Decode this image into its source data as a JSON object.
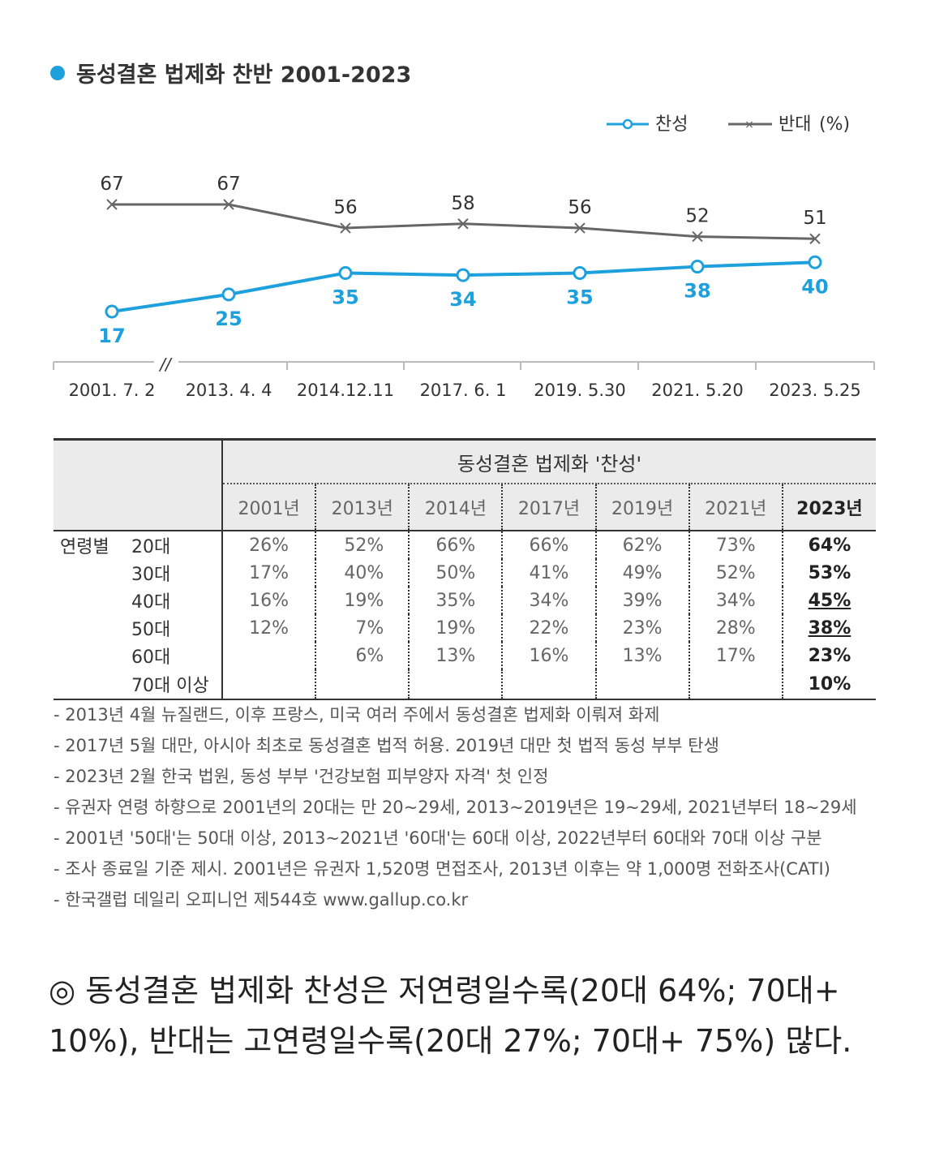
{
  "title": "동성결혼 법제화 찬반 2001-2023",
  "legend": {
    "support": "찬성",
    "oppose": "반대",
    "unit": "(%)"
  },
  "colors": {
    "support": "#1ea0dc",
    "oppose": "#666666"
  },
  "chart_data": {
    "type": "line",
    "categories": [
      "2001. 7. 2",
      "2013. 4. 4",
      "2014.12.11",
      "2017. 6. 1",
      "2019. 5.30",
      "2021. 5.20",
      "2023. 5.25"
    ],
    "axis_break_marker": "//",
    "series": [
      {
        "name": "찬성",
        "values": [
          17,
          25,
          35,
          34,
          35,
          38,
          40
        ]
      },
      {
        "name": "반대",
        "values": [
          67,
          67,
          56,
          58,
          56,
          52,
          51
        ]
      }
    ],
    "legend_position": "top-right"
  },
  "table": {
    "title": "동성결혼 법제화 '찬성'",
    "years": [
      "2001년",
      "2013년",
      "2014년",
      "2017년",
      "2019년",
      "2021년",
      "2023년"
    ],
    "group_label": "연령별",
    "rows": [
      {
        "age": "20대",
        "values": [
          "26%",
          "52%",
          "66%",
          "66%",
          "62%",
          "73%",
          "64%"
        ]
      },
      {
        "age": "30대",
        "values": [
          "17%",
          "40%",
          "50%",
          "41%",
          "49%",
          "52%",
          "53%"
        ]
      },
      {
        "age": "40대",
        "values": [
          "16%",
          "19%",
          "35%",
          "34%",
          "39%",
          "34%",
          "45%"
        ]
      },
      {
        "age": "50대",
        "values": [
          "12%",
          "7%",
          "19%",
          "22%",
          "23%",
          "28%",
          "38%"
        ]
      },
      {
        "age": "60대",
        "values": [
          "",
          "6%",
          "13%",
          "16%",
          "13%",
          "17%",
          "23%"
        ]
      },
      {
        "age": "70대 이상",
        "values": [
          "",
          "",
          "",
          "",
          "",
          "",
          "10%"
        ]
      }
    ]
  },
  "notes": [
    "- 2013년 4월 뉴질랜드, 이후 프랑스, 미국 여러 주에서 동성결혼 법제화 이뤄져 화제",
    "- 2017년 5월 대만, 아시아 최초로 동성결혼 법적 허용. 2019년 대만 첫 법적 동성 부부 탄생",
    "- 2023년 2월 한국 법원, 동성 부부 '건강보험 피부양자 자격' 첫 인정",
    "- 유권자 연령 하향으로 2001년의 20대는 만 20~29세, 2013~2019년은 19~29세, 2021년부터 18~29세",
    "- 2001년 '50대'는 50대 이상, 2013~2021년 '60대'는 60대 이상, 2022년부터 60대와 70대 이상 구분",
    "- 조사 종료일 기준 제시. 2001년은 유권자 1,520명 면접조사, 2013년 이후는 약 1,000명 전화조사(CATI)",
    "- 한국갤럽 데일리 오피니언 제544호 www.gallup.co.kr"
  ],
  "summary": "◎ 동성결혼 법제화 찬성은 저연령일수록(20대 64%; 70대+ 10%), 반대는 고연령일수록(20대 27%; 70대+ 75%) 많다."
}
